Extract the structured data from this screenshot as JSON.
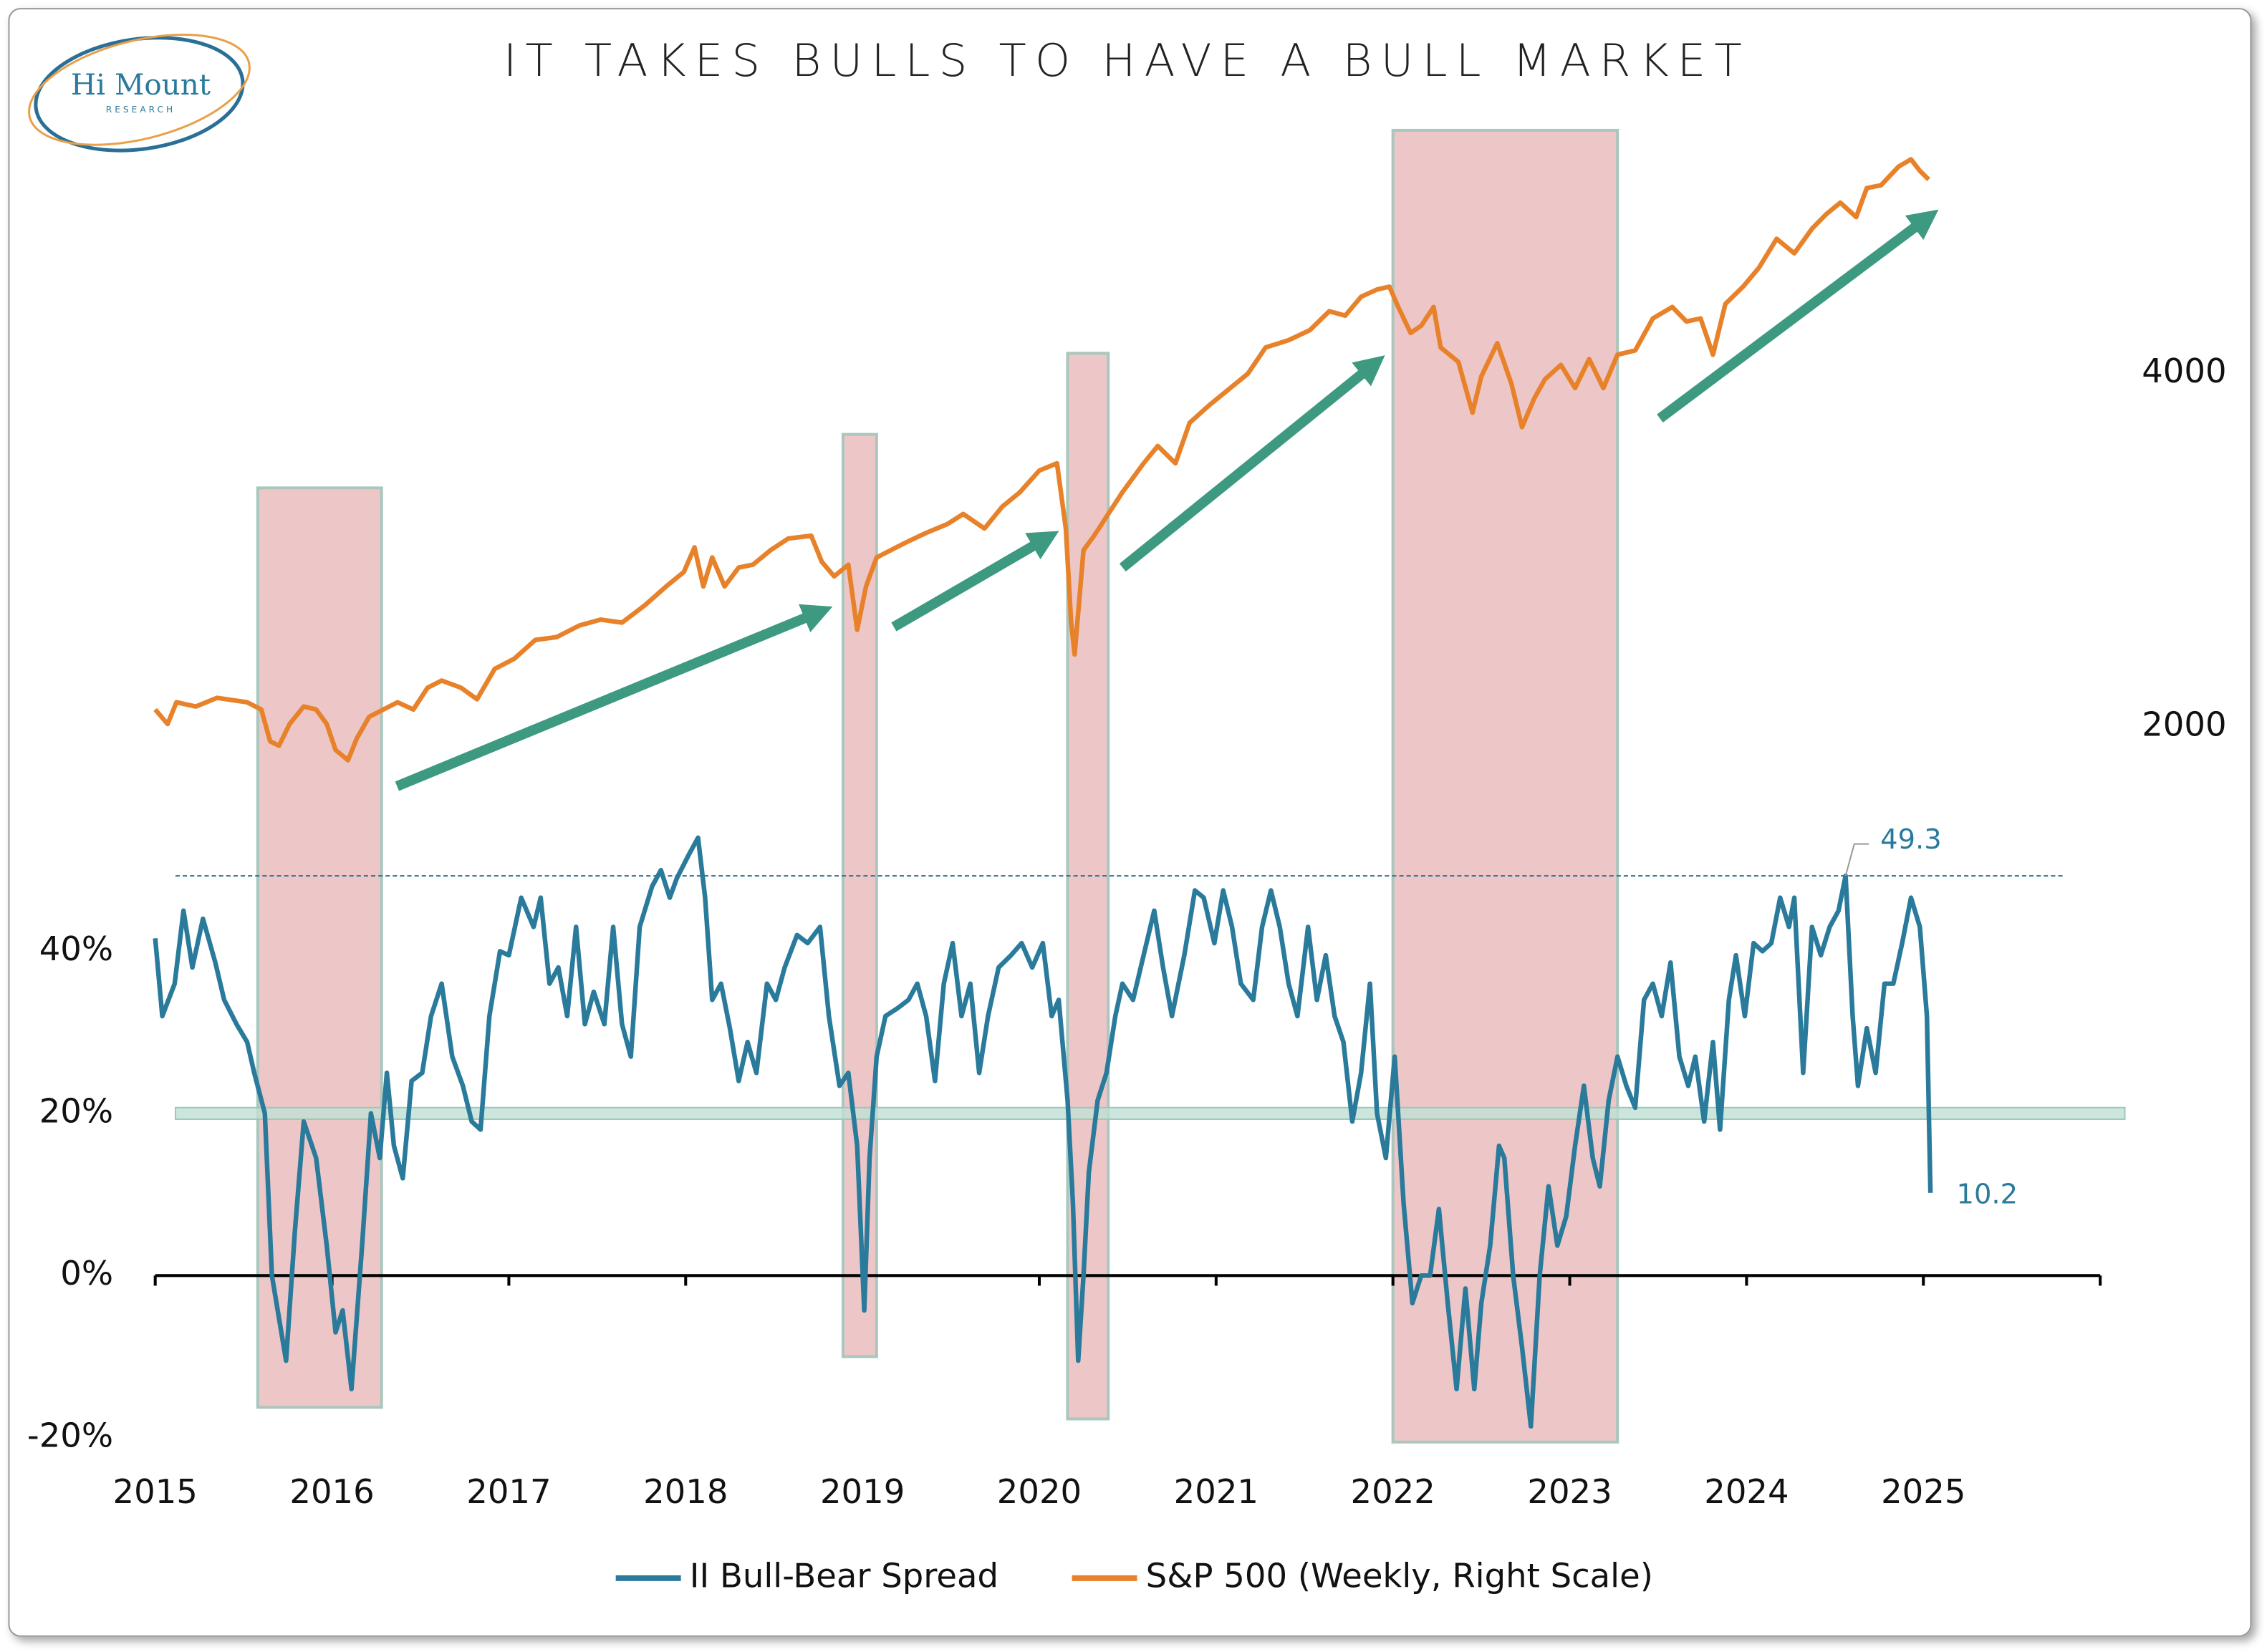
{
  "logo": {
    "name": "Hi Mount",
    "tagline": "RESEARCH"
  },
  "chart_data": {
    "type": "line",
    "title": "IT TAKES BULLS TO HAVE A BULL MARKET",
    "xlim": [
      2015,
      2026
    ],
    "xticks": [
      2015,
      2016,
      2017,
      2018,
      2019,
      2020,
      2021,
      2022,
      2023,
      2024,
      2025
    ],
    "ylim": [
      -20,
      140
    ],
    "yticks": [
      {
        "value": -20,
        "label": "-20%"
      },
      {
        "value": 0,
        "label": "0%"
      },
      {
        "value": 20,
        "label": "20%"
      },
      {
        "value": 40,
        "label": "40%"
      }
    ],
    "y2lim": [
      -2025,
      5320
    ],
    "y2ticks": [
      2000,
      4000
    ],
    "series": [
      {
        "name": "II Bull-Bear Spread",
        "color": "#2a7a9b",
        "x": [
          2015.0,
          2015.04,
          2015.11,
          2015.16,
          2015.21,
          2015.27,
          2015.34,
          2015.39,
          2015.46,
          2015.52,
          2015.56,
          2015.62,
          2015.66,
          2015.74,
          2015.79,
          2015.84,
          2015.91,
          2015.97,
          2016.02,
          2016.06,
          2016.11,
          2016.17,
          2016.22,
          2016.27,
          2016.31,
          2016.35,
          2016.4,
          2016.45,
          2016.51,
          2016.56,
          2016.62,
          2016.68,
          2016.74,
          2016.79,
          2016.84,
          2016.89,
          2016.95,
          2017.0,
          2017.07,
          2017.14,
          2017.18,
          2017.23,
          2017.28,
          2017.33,
          2017.38,
          2017.43,
          2017.48,
          2017.54,
          2017.59,
          2017.64,
          2017.69,
          2017.74,
          2017.81,
          2017.86,
          2017.91,
          2017.95,
          2018.02,
          2018.07,
          2018.11,
          2018.15,
          2018.2,
          2018.25,
          2018.3,
          2018.35,
          2018.4,
          2018.46,
          2018.51,
          2018.56,
          2018.63,
          2018.69,
          2018.76,
          2018.81,
          2018.87,
          2018.92,
          2018.97,
          2019.01,
          2019.04,
          2019.08,
          2019.13,
          2019.2,
          2019.26,
          2019.31,
          2019.36,
          2019.41,
          2019.46,
          2019.51,
          2019.56,
          2019.61,
          2019.66,
          2019.71,
          2019.77,
          2019.84,
          2019.9,
          2019.96,
          2020.02,
          2020.07,
          2020.11,
          2020.16,
          2020.19,
          2020.22,
          2020.25,
          2020.28,
          2020.33,
          2020.38,
          2020.43,
          2020.47,
          2020.53,
          2020.59,
          2020.65,
          2020.7,
          2020.75,
          2020.82,
          2020.88,
          2020.93,
          2020.99,
          2021.04,
          2021.09,
          2021.14,
          2021.21,
          2021.26,
          2021.31,
          2021.36,
          2021.41,
          2021.46,
          2021.52,
          2021.57,
          2021.62,
          2021.67,
          2021.72,
          2021.77,
          2021.82,
          2021.87,
          2021.91,
          2021.96,
          2022.01,
          2022.06,
          2022.11,
          2022.16,
          2022.21,
          2022.26,
          2022.31,
          2022.36,
          2022.41,
          2022.46,
          2022.5,
          2022.55,
          2022.6,
          2022.63,
          2022.68,
          2022.73,
          2022.78,
          2022.83,
          2022.88,
          2022.93,
          2022.98,
          2023.03,
          2023.08,
          2023.13,
          2023.17,
          2023.22,
          2023.27,
          2023.32,
          2023.37,
          2023.42,
          2023.47,
          2023.52,
          2023.57,
          2023.62,
          2023.67,
          2023.71,
          2023.76,
          2023.81,
          2023.85,
          2023.9,
          2023.94,
          2023.99,
          2024.04,
          2024.09,
          2024.14,
          2024.19,
          2024.24,
          2024.27,
          2024.32,
          2024.37,
          2024.42,
          2024.47,
          2024.52,
          2024.56,
          2024.6,
          2024.63,
          2024.68,
          2024.73,
          2024.78,
          2024.83,
          2024.88,
          2024.93,
          2024.98,
          2025.02,
          2025.04
        ],
        "values": [
          41.6,
          32,
          36,
          45,
          38,
          44,
          38.6,
          34,
          31,
          28.8,
          25,
          20,
          0,
          -10.5,
          5.5,
          19,
          14.5,
          3.7,
          -7,
          -4.3,
          -14,
          3.7,
          20,
          14.5,
          25,
          16,
          12,
          24,
          25,
          32,
          36,
          27,
          23.4,
          19,
          18,
          32,
          40,
          39.5,
          46.6,
          43,
          46.6,
          36,
          38,
          32,
          43,
          31,
          35,
          31,
          43,
          31,
          27,
          43,
          48,
          50,
          46.6,
          49,
          52,
          54,
          46.6,
          34,
          36,
          30.5,
          24,
          28.8,
          25,
          36,
          34,
          38,
          42,
          41,
          43,
          32,
          23.4,
          25,
          16,
          -4.3,
          14.5,
          27,
          32,
          33,
          34,
          36,
          32,
          24,
          36,
          41,
          32,
          36,
          25,
          32,
          38,
          39.5,
          41,
          38,
          41,
          32,
          34,
          21.6,
          9,
          -10.5,
          0,
          12.7,
          21.6,
          25,
          32,
          36,
          34,
          39.5,
          45,
          38,
          32,
          39.5,
          47.5,
          46.6,
          41,
          47.5,
          43,
          36,
          34,
          43,
          47.5,
          43,
          36,
          32,
          43,
          34,
          39.5,
          32,
          28.8,
          19,
          25,
          36,
          20,
          14.5,
          27,
          9,
          -3.4,
          0,
          0,
          8.2,
          -3.4,
          -14,
          -1.6,
          -14,
          -3.4,
          3.7,
          16,
          14.5,
          0,
          -8.8,
          -18.6,
          0,
          11,
          3.7,
          7.3,
          16,
          23.4,
          14.5,
          11,
          21.6,
          27,
          23.4,
          20.7,
          34,
          36,
          32,
          38.6,
          27,
          23.4,
          27,
          19,
          28.8,
          18,
          34,
          39.5,
          32,
          41,
          40,
          41,
          46.6,
          43,
          46.6,
          25,
          43,
          39.5,
          43,
          45,
          49.3,
          32,
          23.4,
          30.5,
          25,
          36,
          36,
          41,
          46.6,
          43,
          32,
          10.2
        ]
      },
      {
        "name": "S&P 500 (Weekly, Right Scale)",
        "color": "#e8822a",
        "axis": "y2",
        "x": [
          2015.0,
          2015.07,
          2015.12,
          2015.23,
          2015.35,
          2015.52,
          2015.6,
          2015.65,
          2015.7,
          2015.76,
          2015.84,
          2015.91,
          2015.97,
          2016.02,
          2016.09,
          2016.14,
          2016.21,
          2016.29,
          2016.37,
          2016.46,
          2016.54,
          2016.62,
          2016.73,
          2016.82,
          2016.92,
          2017.03,
          2017.15,
          2017.27,
          2017.4,
          2017.52,
          2017.64,
          2017.77,
          2017.89,
          2017.99,
          2018.05,
          2018.1,
          2018.15,
          2018.22,
          2018.3,
          2018.38,
          2018.48,
          2018.58,
          2018.71,
          2018.77,
          2018.84,
          2018.92,
          2018.97,
          2019.02,
          2019.08,
          2019.16,
          2019.24,
          2019.36,
          2019.48,
          2019.57,
          2019.69,
          2019.79,
          2019.89,
          2020.0,
          2020.1,
          2020.15,
          2020.18,
          2020.2,
          2020.25,
          2020.31,
          2020.39,
          2020.47,
          2020.59,
          2020.67,
          2020.77,
          2020.85,
          2020.96,
          2021.08,
          2021.18,
          2021.28,
          2021.41,
          2021.53,
          2021.64,
          2021.73,
          2021.82,
          2021.91,
          2021.98,
          2022.03,
          2022.1,
          2022.16,
          2022.23,
          2022.27,
          2022.37,
          2022.45,
          2022.5,
          2022.59,
          2022.67,
          2022.73,
          2022.8,
          2022.86,
          2022.95,
          2023.03,
          2023.11,
          2023.19,
          2023.27,
          2023.37,
          2023.47,
          2023.58,
          2023.66,
          2023.74,
          2023.81,
          2023.88,
          2023.98,
          2024.07,
          2024.17,
          2024.27,
          2024.37,
          2024.45,
          2024.53,
          2024.62,
          2024.68,
          2024.76,
          2024.86,
          2024.93,
          2024.98,
          2025.03
        ],
        "values": [
          2098,
          2016,
          2139,
          2115,
          2164,
          2139,
          2098,
          1918,
          1893,
          2016,
          2115,
          2098,
          2016,
          1869,
          1811,
          1934,
          2057,
          2098,
          2139,
          2098,
          2221,
          2262,
          2221,
          2156,
          2328,
          2385,
          2492,
          2508,
          2574,
          2607,
          2590,
          2689,
          2795,
          2877,
          3016,
          2795,
          2959,
          2795,
          2902,
          2918,
          3000,
          3066,
          3082,
          2934,
          2852,
          2918,
          2549,
          2795,
          2959,
          3000,
          3041,
          3098,
          3148,
          3205,
          3123,
          3246,
          3328,
          3451,
          3492,
          3123,
          2590,
          2410,
          3000,
          3082,
          3205,
          3328,
          3492,
          3590,
          3492,
          3721,
          3820,
          3918,
          4000,
          4148,
          4189,
          4246,
          4353,
          4328,
          4435,
          4476,
          4492,
          4377,
          4230,
          4271,
          4377,
          4148,
          4066,
          3779,
          3984,
          4172,
          3943,
          3697,
          3861,
          3968,
          4049,
          3918,
          4082,
          3918,
          4107,
          4131,
          4312,
          4377,
          4295,
          4312,
          4107,
          4394,
          4492,
          4599,
          4763,
          4681,
          4820,
          4902,
          4968,
          4886,
          5050,
          5066,
          5172,
          5213,
          5148,
          5099
        ]
      }
    ],
    "reference_line": {
      "value": 49.3,
      "label": "49.3"
    },
    "band": {
      "value": 20
    },
    "annotations": [
      {
        "text": "10.2",
        "x": 2025.04,
        "y": 10.2
      }
    ],
    "shaded_periods": [
      [
        2015.58,
        2016.28
      ],
      [
        2018.89,
        2019.08
      ],
      [
        2020.16,
        2020.39
      ],
      [
        2022.0,
        2023.27
      ]
    ]
  }
}
